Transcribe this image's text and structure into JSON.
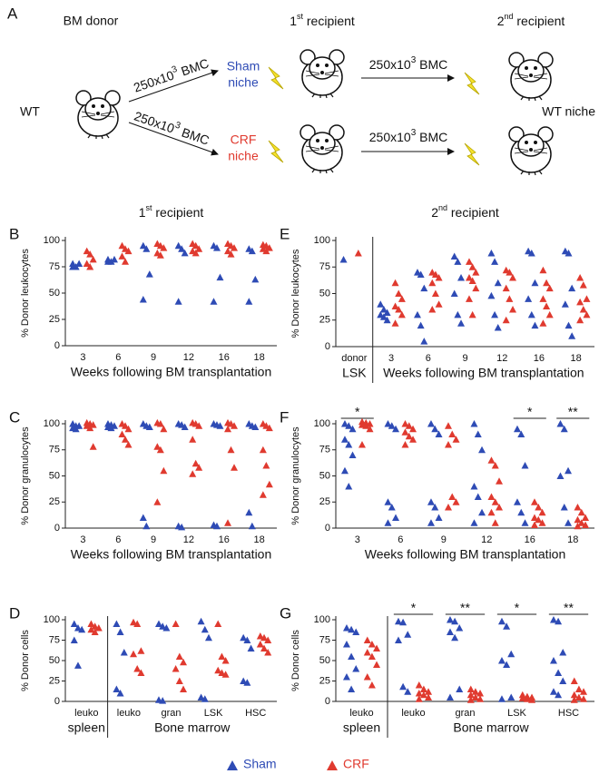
{
  "schematic": {
    "label": "A",
    "donor_title": "BM donor",
    "recipient1_title": [
      "1",
      "st",
      " recipient"
    ],
    "recipient2_title": [
      "2",
      "nd",
      " recipient"
    ],
    "wt": "WT",
    "bmc": [
      "250x10",
      "3",
      " BMC"
    ],
    "sham_niche": [
      "Sham",
      "niche"
    ],
    "crf_niche": [
      "CRF",
      "niche"
    ],
    "wt_niche": "WT niche"
  },
  "chart_data": [
    {
      "type": "strip",
      "label": "B",
      "title": [
        "1",
        "st",
        " recipient"
      ],
      "ylabel": "% Donor leukocytes",
      "xlabel": "Weeks following BM transplantation",
      "categories": [
        "3",
        "6",
        "9",
        "12",
        "16",
        "18"
      ],
      "ylim": [
        0,
        100
      ],
      "yticks": [
        0,
        25,
        50,
        75,
        100
      ],
      "series": [
        {
          "name": "Sham",
          "color": "#2e4bb5",
          "values": [
            [
              78,
              75,
              78,
              75
            ],
            [
              82,
              80,
              82,
              80
            ],
            [
              95,
              92,
              68,
              44
            ],
            [
              95,
              92,
              88,
              42
            ],
            [
              95,
              93,
              65,
              42
            ],
            [
              92,
              90,
              63,
              42
            ]
          ]
        },
        {
          "name": "CRF",
          "color": "#e03a2f",
          "values": [
            [
              90,
              87,
              82,
              78,
              75
            ],
            [
              95,
              92,
              90,
              85,
              80
            ],
            [
              97,
              95,
              93,
              88,
              86
            ],
            [
              97,
              95,
              92,
              90,
              88
            ],
            [
              97,
              95,
              93,
              90,
              87
            ],
            [
              96,
              95,
              93,
              92,
              90
            ]
          ]
        }
      ]
    },
    {
      "type": "strip",
      "label": "C",
      "ylabel": "% Donor granulocytes",
      "xlabel": "Weeks following BM transplantation",
      "categories": [
        "3",
        "6",
        "9",
        "12",
        "16",
        "18"
      ],
      "ylim": [
        0,
        100
      ],
      "yticks": [
        0,
        25,
        50,
        75,
        100
      ],
      "series": [
        {
          "name": "Sham",
          "color": "#2e4bb5",
          "values": [
            [
              100,
              98,
              98,
              96,
              95
            ],
            [
              100,
              99,
              98,
              97,
              96
            ],
            [
              100,
              98,
              97,
              10,
              2
            ],
            [
              100,
              99,
              97,
              2,
              1
            ],
            [
              100,
              99,
              98,
              3,
              2
            ],
            [
              100,
              98,
              97,
              15,
              2
            ]
          ]
        },
        {
          "name": "CRF",
          "color": "#e03a2f",
          "values": [
            [
              101,
              100,
              99,
              98,
              96,
              78
            ],
            [
              100,
              98,
              95,
              90,
              85,
              80
            ],
            [
              101,
              100,
              95,
              78,
              75,
              55,
              25
            ],
            [
              101,
              100,
              98,
              85,
              62,
              58,
              52
            ],
            [
              101,
              100,
              98,
              95,
              75,
              58,
              5
            ],
            [
              100,
              98,
              96,
              75,
              60,
              42,
              32
            ]
          ]
        }
      ]
    },
    {
      "type": "strip",
      "label": "D",
      "ylabel": "% Donor cells",
      "categories": [
        "leuko",
        "leuko",
        "gran",
        "LSK",
        "HSC"
      ],
      "groups": [
        {
          "label": "spleen",
          "size": 1
        },
        {
          "label": "Bone marrow",
          "size": 4
        }
      ],
      "ylim": [
        0,
        100
      ],
      "yticks": [
        0,
        25,
        50,
        75,
        100
      ],
      "series": [
        {
          "name": "Sham",
          "color": "#2e4bb5",
          "values": [
            [
              95,
              90,
              88,
              75,
              44
            ],
            [
              95,
              85,
              60,
              15,
              10
            ],
            [
              95,
              92,
              90,
              2,
              1
            ],
            [
              98,
              88,
              78,
              5,
              3
            ],
            [
              78,
              75,
              65,
              25,
              23
            ]
          ]
        },
        {
          "name": "CRF",
          "color": "#e03a2f",
          "values": [
            [
              95,
              92,
              90,
              88,
              85
            ],
            [
              97,
              95,
              62,
              58,
              40,
              35
            ],
            [
              95,
              55,
              48,
              40,
              25,
              15
            ],
            [
              95,
              55,
              50,
              38,
              35,
              33
            ],
            [
              80,
              78,
              75,
              70,
              65,
              60
            ]
          ]
        }
      ]
    },
    {
      "type": "strip",
      "label": "E",
      "title": [
        "2",
        "nd",
        " recipient"
      ],
      "ylabel": "% Donor leukocytes",
      "categories": [
        "donor",
        "3",
        "6",
        "9",
        "12",
        "16",
        "18"
      ],
      "groups": [
        {
          "label": "LSK",
          "size": 1
        },
        {
          "label": "Weeks following BM transplantation",
          "size": 6
        }
      ],
      "ylim": [
        0,
        100
      ],
      "yticks": [
        0,
        25,
        50,
        75,
        100
      ],
      "series": [
        {
          "name": "Sham",
          "color": "#2e4bb5",
          "values": [
            [
              82
            ],
            [
              40,
              35,
              32,
              30,
              28,
              25
            ],
            [
              70,
              68,
              55,
              30,
              20,
              5
            ],
            [
              85,
              80,
              65,
              50,
              30,
              22
            ],
            [
              88,
              80,
              60,
              48,
              30,
              18
            ],
            [
              90,
              88,
              60,
              45,
              30,
              20
            ],
            [
              90,
              88,
              55,
              40,
              20,
              10
            ]
          ]
        },
        {
          "name": "CRF",
          "color": "#e03a2f",
          "values": [
            [
              88
            ],
            [
              60,
              50,
              45,
              38,
              35,
              30,
              22
            ],
            [
              70,
              68,
              65,
              60,
              50,
              40,
              35
            ],
            [
              80,
              75,
              70,
              65,
              62,
              55,
              45,
              30
            ],
            [
              72,
              70,
              65,
              55,
              45,
              35,
              25
            ],
            [
              72,
              60,
              55,
              45,
              38,
              30,
              22
            ],
            [
              65,
              58,
              45,
              42,
              35,
              30,
              25
            ]
          ]
        }
      ]
    },
    {
      "type": "strip",
      "label": "F",
      "ylabel": "% Donor granulocytes",
      "xlabel": "Weeks following BM transplantation",
      "categories": [
        "3",
        "6",
        "9",
        "12",
        "16",
        "18"
      ],
      "ylim": [
        0,
        100
      ],
      "yticks": [
        0,
        25,
        50,
        75,
        100
      ],
      "annotations": [
        {
          "text": "*",
          "category": 0
        },
        {
          "text": "*",
          "category": 4
        },
        {
          "text": "**",
          "category": 5
        }
      ],
      "series": [
        {
          "name": "Sham",
          "color": "#2e4bb5",
          "values": [
            [
              100,
              98,
              95,
              85,
              80,
              70,
              55,
              40
            ],
            [
              100,
              98,
              95,
              25,
              20,
              10,
              5
            ],
            [
              100,
              95,
              90,
              25,
              20,
              10,
              5
            ],
            [
              100,
              90,
              75,
              40,
              30,
              15,
              5
            ],
            [
              95,
              90,
              60,
              25,
              15,
              5
            ],
            [
              100,
              95,
              55,
              50,
              20,
              5
            ]
          ]
        },
        {
          "name": "CRF",
          "color": "#e03a2f",
          "values": [
            [
              102,
              101,
              100,
              99,
              98,
              95,
              80
            ],
            [
              100,
              98,
              95,
              92,
              88,
              85,
              80
            ],
            [
              98,
              90,
              85,
              80,
              30,
              25,
              20
            ],
            [
              65,
              60,
              45,
              30,
              25,
              20,
              15,
              5
            ],
            [
              25,
              20,
              15,
              10,
              8,
              5,
              3
            ],
            [
              20,
              15,
              10,
              8,
              5,
              3,
              2
            ]
          ]
        }
      ]
    },
    {
      "type": "strip",
      "label": "G",
      "ylabel": "% Donor cells",
      "categories": [
        "leuko",
        "leuko",
        "gran",
        "LSK",
        "HSC"
      ],
      "groups": [
        {
          "label": "spleen",
          "size": 1
        },
        {
          "label": "Bone marrow",
          "size": 4
        }
      ],
      "ylim": [
        0,
        100
      ],
      "yticks": [
        0,
        25,
        50,
        75,
        100
      ],
      "annotations": [
        {
          "text": "*",
          "category": 1
        },
        {
          "text": "**",
          "category": 2
        },
        {
          "text": "*",
          "category": 3
        },
        {
          "text": "**",
          "category": 4
        }
      ],
      "series": [
        {
          "name": "Sham",
          "color": "#2e4bb5",
          "values": [
            [
              90,
              88,
              85,
              70,
              55,
              40,
              30,
              15
            ],
            [
              98,
              97,
              82,
              75,
              18,
              12
            ],
            [
              100,
              98,
              90,
              85,
              78,
              15,
              5
            ],
            [
              98,
              92,
              58,
              50,
              45,
              5,
              3
            ],
            [
              100,
              98,
              60,
              50,
              35,
              25,
              12,
              8
            ]
          ]
        },
        {
          "name": "CRF",
          "color": "#e03a2f",
          "values": [
            [
              75,
              70,
              65,
              60,
              55,
              45,
              30,
              20
            ],
            [
              20,
              15,
              12,
              10,
              8,
              5,
              3
            ],
            [
              15,
              12,
              10,
              8,
              5,
              3,
              2
            ],
            [
              8,
              6,
              5,
              4,
              3,
              2
            ],
            [
              25,
              15,
              12,
              8,
              5,
              3,
              2
            ]
          ]
        }
      ]
    }
  ]
}
